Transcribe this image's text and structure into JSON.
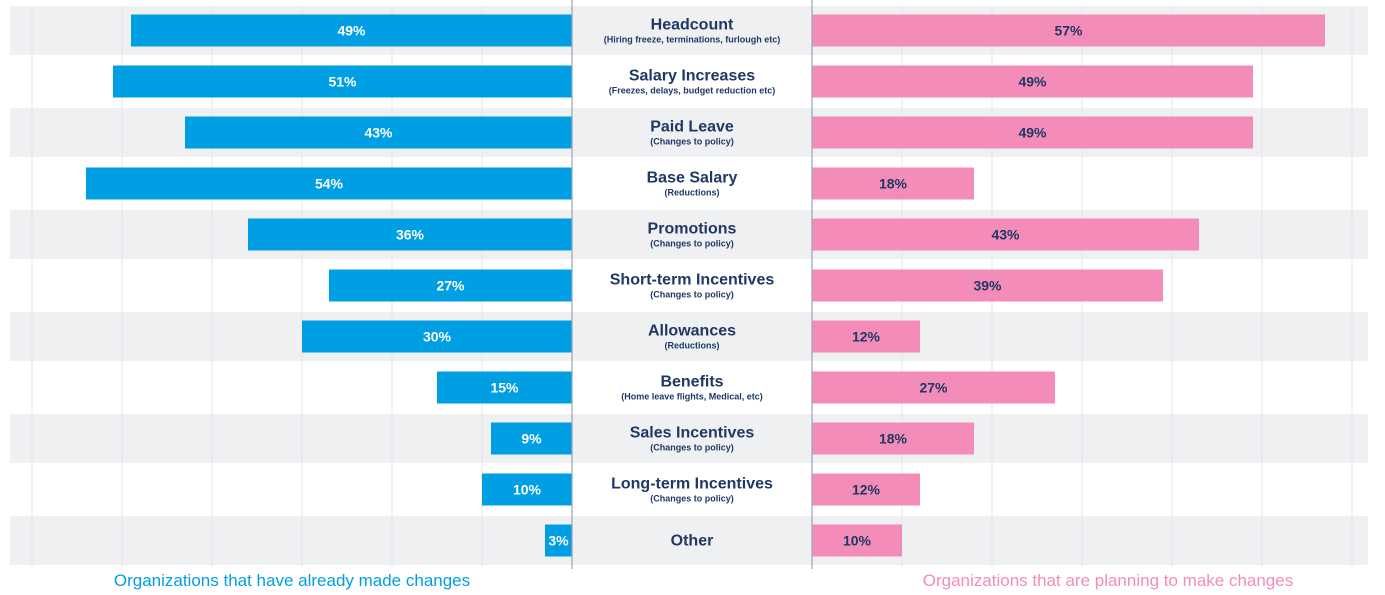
{
  "chart_data": {
    "type": "bar",
    "orientation": "horizontal-diverging",
    "categories": [
      {
        "label": "Headcount",
        "sublabel": "(Hiring freeze, terminations, furlough etc)"
      },
      {
        "label": "Salary Increases",
        "sublabel": "(Freezes, delays, budget reduction etc)"
      },
      {
        "label": "Paid Leave",
        "sublabel": "(Changes to policy)"
      },
      {
        "label": "Base Salary",
        "sublabel": "(Reductions)"
      },
      {
        "label": "Promotions",
        "sublabel": "(Changes to policy)"
      },
      {
        "label": "Short-term Incentives",
        "sublabel": "(Changes to policy)"
      },
      {
        "label": "Allowances",
        "sublabel": "(Reductions)"
      },
      {
        "label": "Benefits",
        "sublabel": "(Home leave flights, Medical, etc)"
      },
      {
        "label": "Sales Incentives",
        "sublabel": "(Changes to policy)"
      },
      {
        "label": "Long-term Incentives",
        "sublabel": "(Changes to policy)"
      },
      {
        "label": "Other",
        "sublabel": ""
      }
    ],
    "series": [
      {
        "name": "Organizations that have already made changes",
        "side": "left",
        "color": "#009fe3",
        "label_color": "#ffffff",
        "values": [
          49,
          51,
          43,
          54,
          36,
          27,
          30,
          15,
          9,
          10,
          3
        ],
        "labels": [
          "49%",
          "51%",
          "43%",
          "54%",
          "36%",
          "27%",
          "30%",
          "15%",
          "9%",
          "10%",
          "3%"
        ]
      },
      {
        "name": "Organizations that are planning to make changes",
        "side": "right",
        "color": "#f48cba",
        "label_color": "#1f3864",
        "values": [
          57,
          49,
          49,
          18,
          43,
          39,
          12,
          27,
          18,
          12,
          10
        ],
        "labels": [
          "57%",
          "49%",
          "49%",
          "18%",
          "43%",
          "39%",
          "12%",
          "27%",
          "18%",
          "12%",
          "10%"
        ]
      }
    ],
    "xlim": [
      0,
      60
    ],
    "grid": true,
    "legend_position": "bottom",
    "row_band_color": "#eff0f2",
    "category_text_color": "#1f3864"
  }
}
